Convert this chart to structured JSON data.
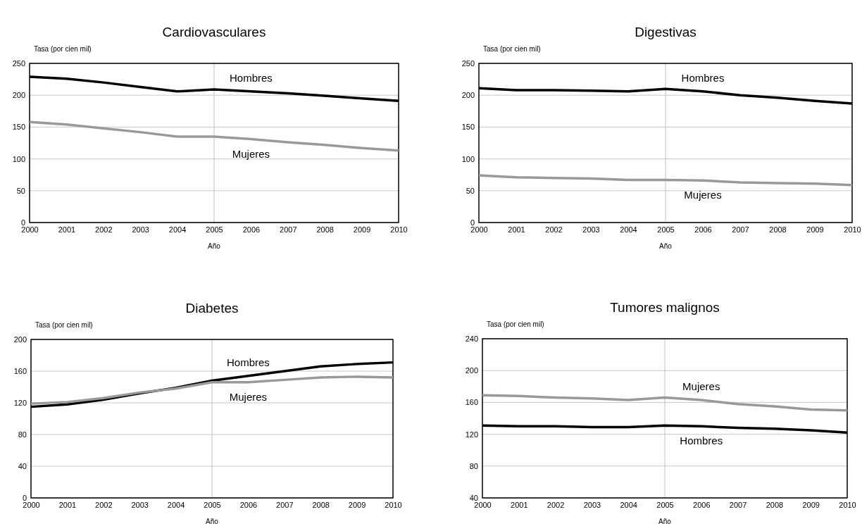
{
  "chart_data": [
    {
      "type": "line",
      "title": "Cardiovasculares",
      "xlabel": "Año",
      "ylabel": "Tasa (por cien mil)",
      "x": [
        2000,
        2001,
        2002,
        2003,
        2004,
        2005,
        2006,
        2007,
        2008,
        2009,
        2010
      ],
      "xlim": [
        2000,
        2010
      ],
      "xticks": [
        2000,
        2001,
        2002,
        2003,
        2004,
        2005,
        2006,
        2007,
        2008,
        2009,
        2010
      ],
      "ylim": [
        0,
        250
      ],
      "yticks": [
        0,
        50,
        100,
        150,
        200,
        250
      ],
      "grid": "y",
      "legend": false,
      "ref_lines": [
        {
          "axis": "x",
          "value": 2005,
          "color": "#c0c0c0"
        }
      ],
      "series": [
        {
          "name": "Hombres",
          "color": "#000000",
          "values": [
            229,
            226,
            220,
            213,
            206,
            209,
            206,
            203,
            199,
            195,
            191
          ]
        },
        {
          "name": "Mujeres",
          "color": "#999999",
          "values": [
            158,
            154,
            148,
            142,
            135,
            135,
            131,
            126,
            122,
            117,
            113
          ]
        }
      ]
    },
    {
      "type": "line",
      "title": "Digestivas",
      "xlabel": "Año",
      "ylabel": "Tasa (por cien mil)",
      "x": [
        2000,
        2001,
        2002,
        2003,
        2004,
        2005,
        2006,
        2007,
        2008,
        2009,
        2010
      ],
      "xlim": [
        2000,
        2010
      ],
      "xticks": [
        2000,
        2001,
        2002,
        2003,
        2004,
        2005,
        2006,
        2007,
        2008,
        2009,
        2010
      ],
      "ylim": [
        0,
        250
      ],
      "yticks": [
        0,
        50,
        100,
        150,
        200,
        250
      ],
      "grid": "y",
      "legend": false,
      "ref_lines": [
        {
          "axis": "x",
          "value": 2005,
          "color": "#c0c0c0"
        }
      ],
      "series": [
        {
          "name": "Hombres",
          "color": "#000000",
          "values": [
            211,
            208,
            208,
            207,
            206,
            210,
            206,
            200,
            196,
            191,
            187
          ]
        },
        {
          "name": "Mujeres",
          "color": "#999999",
          "values": [
            74,
            71,
            70,
            69,
            67,
            67,
            66,
            63,
            62,
            61,
            59
          ]
        }
      ]
    },
    {
      "type": "line",
      "title": "Diabetes",
      "xlabel": "Año",
      "ylabel": "Tasa (por cien mil)",
      "x": [
        2000,
        2001,
        2002,
        2003,
        2004,
        2005,
        2006,
        2007,
        2008,
        2009,
        2010
      ],
      "xlim": [
        2000,
        2010
      ],
      "xticks": [
        2000,
        2001,
        2002,
        2003,
        2004,
        2005,
        2006,
        2007,
        2008,
        2009,
        2010
      ],
      "ylim": [
        0,
        200
      ],
      "yticks": [
        0,
        40,
        80,
        120,
        160,
        200
      ],
      "grid": "y",
      "legend": false,
      "ref_lines": [
        {
          "axis": "x",
          "value": 2005,
          "color": "#c0c0c0"
        }
      ],
      "series": [
        {
          "name": "Hombres",
          "color": "#000000",
          "values": [
            115,
            118,
            124,
            132,
            139,
            148,
            154,
            160,
            166,
            169,
            171
          ]
        },
        {
          "name": "Mujeres",
          "color": "#999999",
          "values": [
            119,
            121,
            126,
            133,
            138,
            146,
            146,
            149,
            152,
            153,
            152
          ]
        }
      ]
    },
    {
      "type": "line",
      "title": "Tumores malignos",
      "xlabel": "Año",
      "ylabel": "Tasa (por cien mil)",
      "x": [
        2000,
        2001,
        2002,
        2003,
        2004,
        2005,
        2006,
        2007,
        2008,
        2009,
        2010
      ],
      "xlim": [
        2000,
        2010
      ],
      "xticks": [
        2000,
        2001,
        2002,
        2003,
        2004,
        2005,
        2006,
        2007,
        2008,
        2009,
        2010
      ],
      "ylim": [
        40,
        240
      ],
      "yticks": [
        40,
        80,
        120,
        160,
        200,
        240
      ],
      "grid": "y",
      "legend": false,
      "ref_lines": [
        {
          "axis": "x",
          "value": 2005,
          "color": "#c0c0c0"
        }
      ],
      "series": [
        {
          "name": "Hombres",
          "color": "#000000",
          "values": [
            131,
            130,
            130,
            129,
            129,
            131,
            130,
            128,
            127,
            125,
            122
          ]
        },
        {
          "name": "Mujeres",
          "color": "#999999",
          "values": [
            169,
            168,
            166,
            165,
            163,
            166,
            163,
            158,
            155,
            151,
            150
          ]
        }
      ]
    }
  ]
}
